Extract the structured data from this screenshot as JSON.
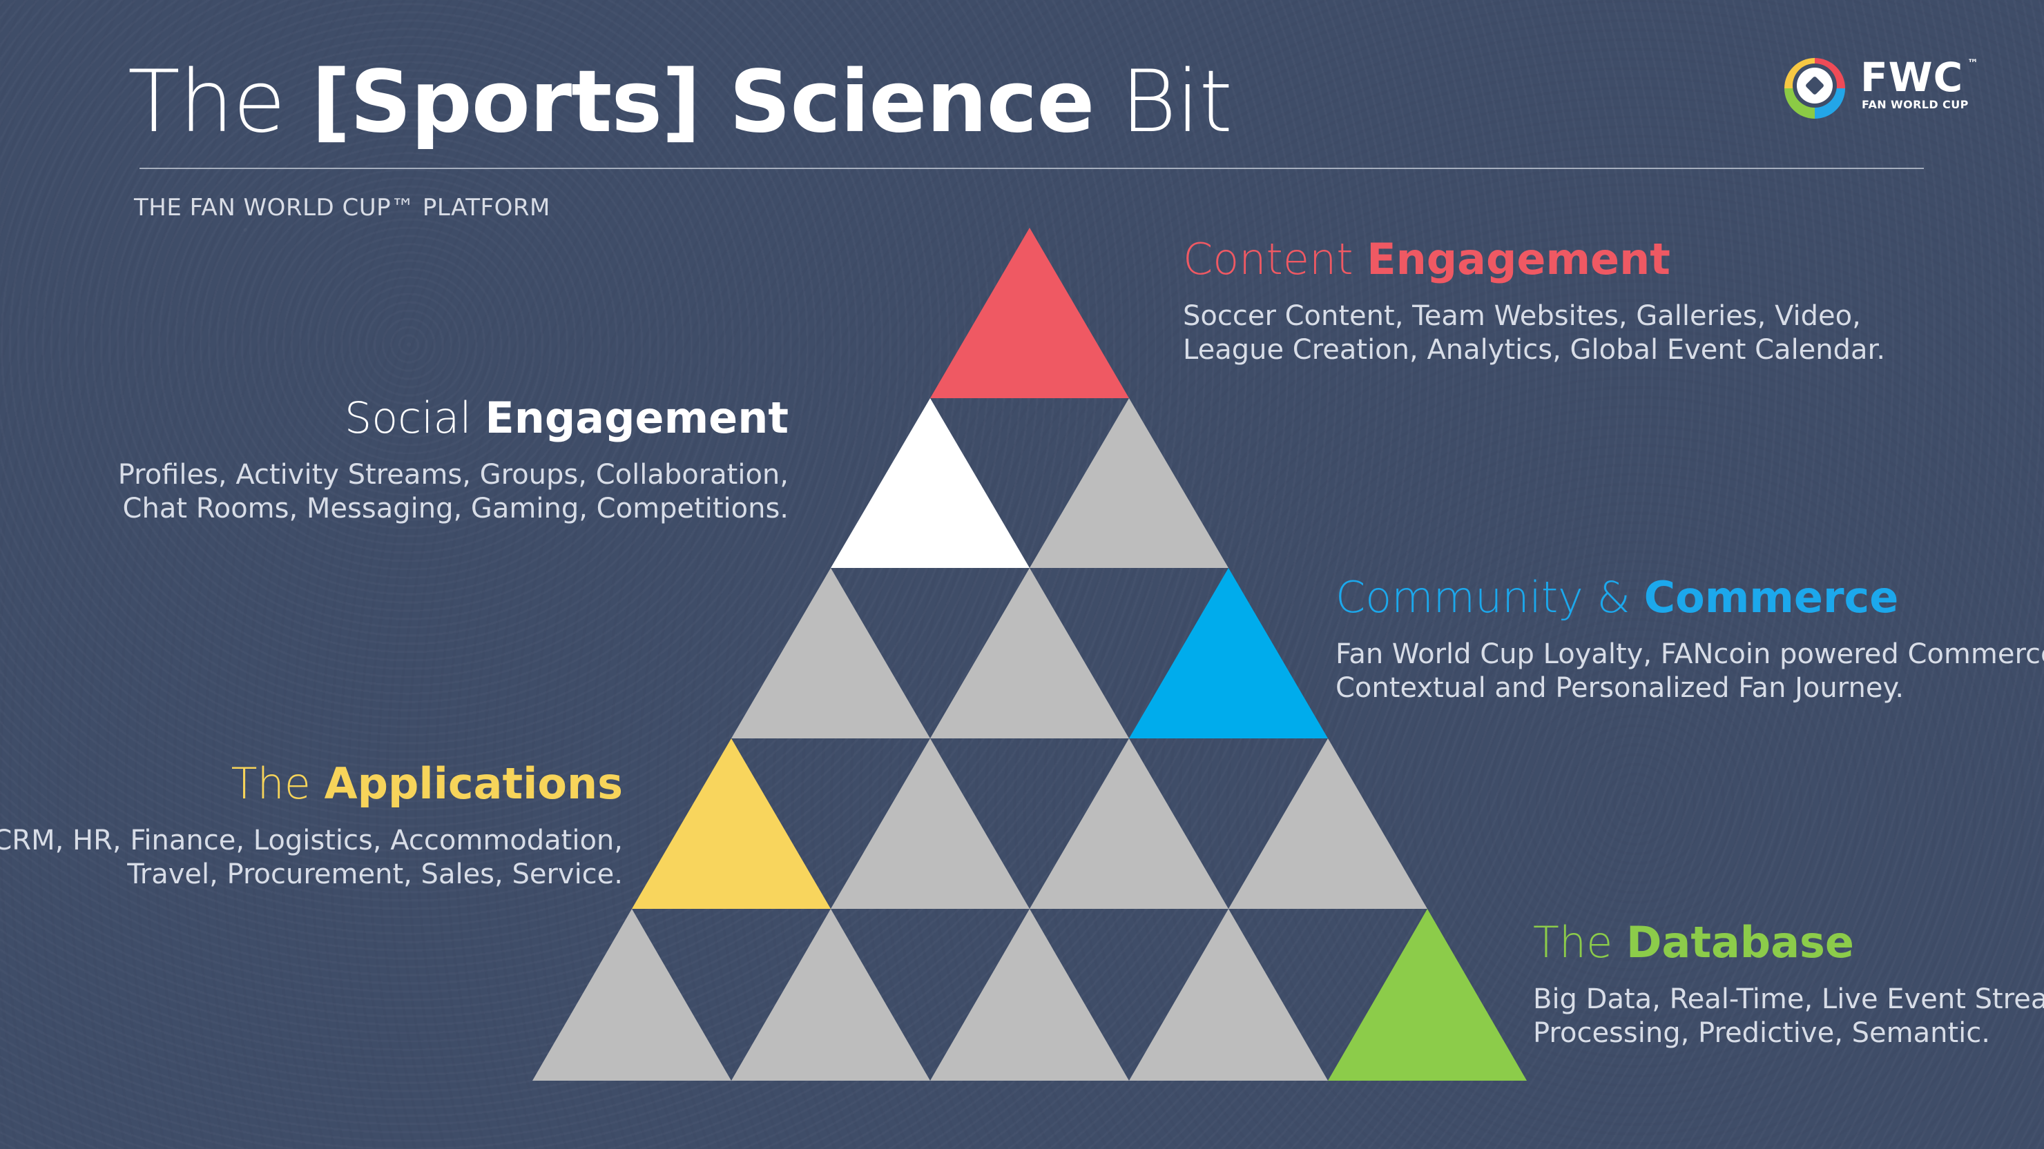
{
  "title": {
    "prefix": "The ",
    "strong": "[Sports] Science",
    "suffix": " Bit"
  },
  "subtitle": "THE FAN WORLD CUP™ PLATFORM",
  "logo": {
    "mark": "FWC",
    "trademark": "™",
    "caption": "FAN WORLD CUP"
  },
  "colors": {
    "background": "#3f4d68",
    "gray": "#bdbdbd",
    "content": "#ef5963",
    "social": "#ffffff",
    "community": "#00acec",
    "applications": "#f8d55d",
    "database": "#8ccc4a"
  },
  "sections": {
    "content": {
      "light": "Content ",
      "strong": "Engagement",
      "line1": "Soccer Content, Team Websites, Galleries, Video,",
      "line2": "League Creation, Analytics, Global Event Calendar."
    },
    "social": {
      "light": "Social ",
      "strong": "Engagement",
      "line1": "Profiles, Activity Streams, Groups, Collaboration,",
      "line2": "Chat Rooms, Messaging, Gaming, Competitions."
    },
    "community": {
      "light": "Community & ",
      "strong": "Commerce",
      "line1": "Fan World Cup Loyalty, FANcoin powered Commerce,",
      "line2": "Contextual and Personalized Fan Journey."
    },
    "applications": {
      "light": "The ",
      "strong": "Applications",
      "line1": "CRM, HR, Finance, Logistics, Accommodation,",
      "line2": "Travel, Procurement, Sales, Service."
    },
    "database": {
      "light": "The ",
      "strong": "Database",
      "line1": "Big Data, Real-Time, Live Event Stream",
      "line2": "Processing, Predictive, Semantic."
    }
  }
}
